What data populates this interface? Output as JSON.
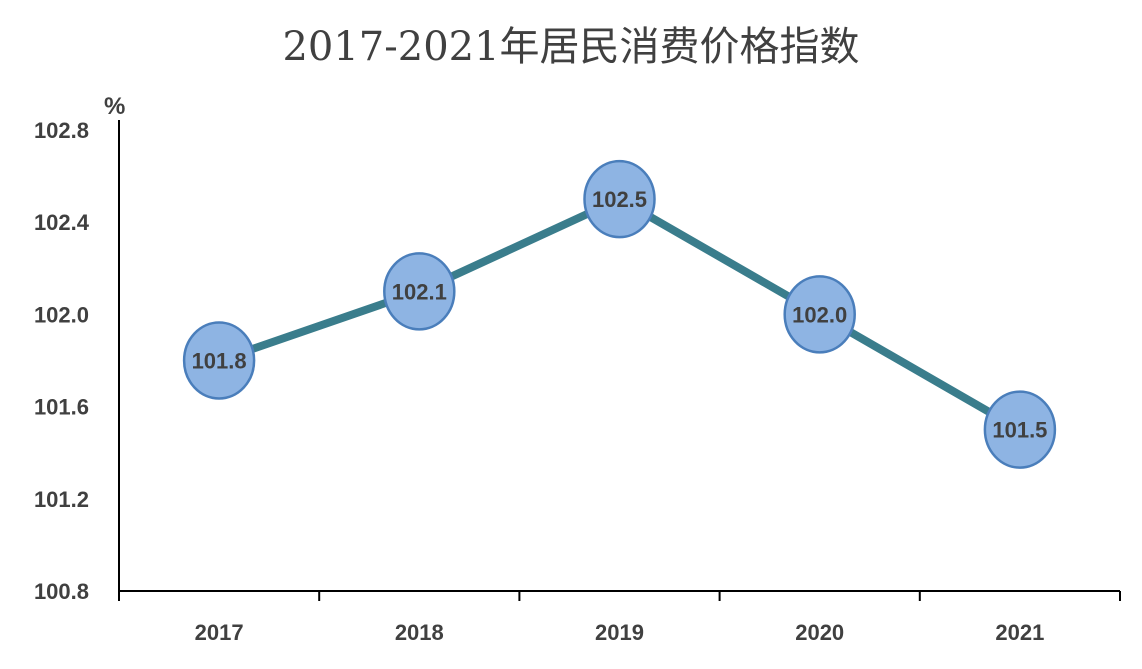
{
  "chart_data": {
    "type": "line",
    "title": "2017-2021年居民消费价格指数",
    "ylabel": "%",
    "xlabel": "",
    "categories": [
      "2017",
      "2018",
      "2019",
      "2020",
      "2021"
    ],
    "series": [
      {
        "values": [
          101.8,
          102.1,
          102.5,
          102.0,
          101.5
        ]
      }
    ],
    "ylim": [
      100.8,
      102.8
    ],
    "yticks": [
      "100.8",
      "101.2",
      "101.6",
      "102.0",
      "102.4",
      "102.8"
    ],
    "data_labels": [
      "101.8",
      "102.1",
      "102.5",
      "102.0",
      "101.5"
    ],
    "grid": false,
    "legend": "none",
    "colors": {
      "line": "#3a7d8c",
      "marker_fill": "#8eb4e3",
      "marker_stroke": "#4a7ebb",
      "axis": "#000000",
      "text": "#404040"
    }
  }
}
